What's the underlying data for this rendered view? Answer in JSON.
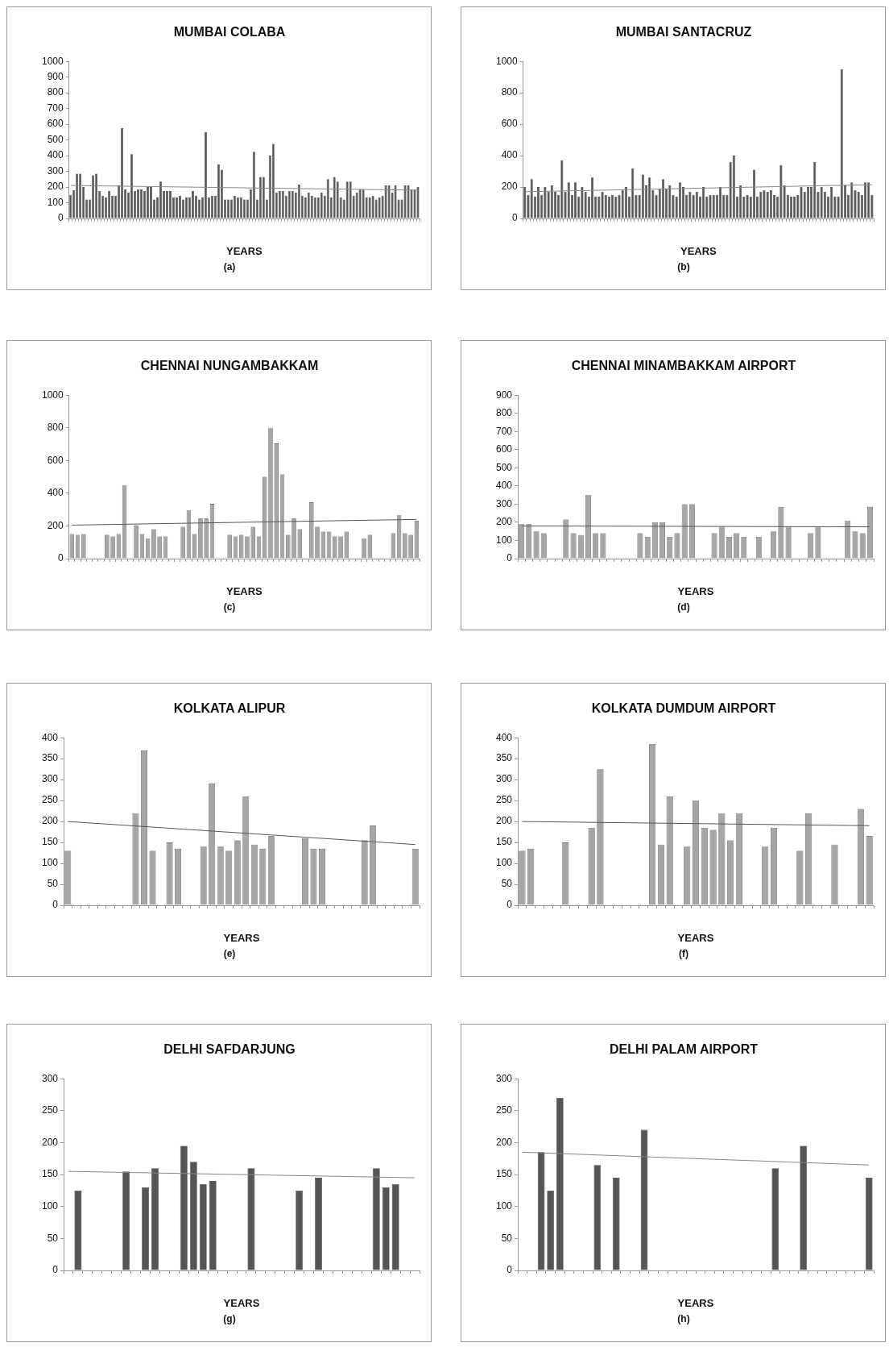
{
  "chart_data": [
    {
      "type": "bar",
      "title": "MUMBAI COLABA",
      "xlabel": "YEARS",
      "annotations": [
        "(a)"
      ],
      "grid": false,
      "legend": false,
      "tick_labels": "y",
      "ylim": [
        0,
        1000
      ],
      "yticks": [
        0,
        100,
        200,
        300,
        400,
        500,
        600,
        700,
        800,
        900,
        1000
      ],
      "categories": [
        null,
        null,
        null,
        null,
        null,
        null,
        null,
        null,
        null,
        null,
        null,
        null,
        null,
        null,
        null,
        null,
        null,
        null,
        null,
        null,
        null,
        null,
        null,
        null,
        null,
        null,
        null,
        null,
        null,
        null,
        null,
        null,
        null,
        null,
        null,
        null,
        null,
        null,
        null,
        null,
        null,
        null,
        null,
        null,
        null,
        null,
        null,
        null,
        null,
        null,
        null,
        null,
        null,
        null,
        null,
        null,
        null,
        null,
        null,
        null,
        null,
        null,
        null,
        null,
        null,
        null,
        null,
        null,
        null,
        null,
        null,
        null,
        null,
        null,
        null,
        null,
        null,
        null,
        null,
        null,
        null,
        null,
        null,
        null,
        null,
        null,
        null,
        null,
        null,
        null,
        null,
        null,
        null,
        null,
        null,
        null,
        null,
        null,
        null,
        null,
        null,
        null,
        null,
        null,
        null,
        null,
        null,
        null,
        null
      ],
      "series": [
        {
          "color": "#555555",
          "values": [
            150,
            180,
            285,
            285,
            200,
            120,
            120,
            275,
            285,
            175,
            145,
            135,
            175,
            145,
            145,
            210,
            575,
            185,
            165,
            410,
            175,
            185,
            185,
            175,
            200,
            200,
            120,
            135,
            235,
            175,
            175,
            175,
            135,
            135,
            145,
            120,
            135,
            135,
            175,
            145,
            120,
            135,
            550,
            135,
            145,
            145,
            345,
            310,
            120,
            120,
            120,
            145,
            135,
            135,
            120,
            120,
            185,
            425,
            120,
            265,
            265,
            120,
            400,
            475,
            165,
            175,
            175,
            145,
            175,
            175,
            165,
            215,
            145,
            135,
            165,
            145,
            135,
            135,
            165,
            145,
            250,
            135,
            265,
            235,
            135,
            120,
            235,
            235,
            145,
            165,
            185,
            185,
            135,
            135,
            145,
            120,
            135,
            145,
            210,
            210,
            165,
            210,
            120,
            120,
            210,
            210,
            185,
            185,
            200
          ]
        },
        {
          "type": "line",
          "color": "#888888",
          "values": [
            210,
            null,
            null,
            null,
            null,
            null,
            null,
            null,
            null,
            null,
            null,
            null,
            null,
            null,
            null,
            null,
            null,
            null,
            null,
            null,
            null,
            null,
            null,
            null,
            null,
            null,
            null,
            null,
            null,
            null,
            null,
            null,
            null,
            null,
            null,
            null,
            null,
            null,
            null,
            null,
            null,
            null,
            null,
            null,
            null,
            null,
            null,
            null,
            null,
            null,
            null,
            null,
            null,
            null,
            null,
            null,
            null,
            null,
            null,
            null,
            null,
            null,
            null,
            null,
            null,
            null,
            null,
            null,
            null,
            null,
            null,
            null,
            null,
            null,
            null,
            null,
            null,
            null,
            null,
            null,
            null,
            null,
            null,
            null,
            null,
            null,
            null,
            null,
            null,
            null,
            null,
            null,
            null,
            null,
            null,
            null,
            null,
            null,
            null,
            null,
            null,
            null,
            null,
            null,
            null,
            null,
            null,
            null,
            180
          ]
        }
      ]
    },
    {
      "type": "bar",
      "title": "MUMBAI SANTACRUZ",
      "xlabel": "YEARS",
      "annotations": [
        "(b)"
      ],
      "grid": false,
      "legend": false,
      "tick_labels": "y",
      "ylim": [
        0,
        1000
      ],
      "yticks": [
        0,
        200,
        400,
        600,
        800,
        1000
      ],
      "categories": [
        null,
        null,
        null,
        null,
        null,
        null,
        null,
        null,
        null,
        null,
        null,
        null,
        null,
        null,
        null,
        null,
        null,
        null,
        null,
        null,
        null,
        null,
        null,
        null,
        null,
        null,
        null,
        null,
        null,
        null,
        null,
        null,
        null,
        null,
        null,
        null,
        null,
        null,
        null,
        null,
        null,
        null,
        null,
        null,
        null,
        null,
        null,
        null,
        null,
        null,
        null,
        null,
        null,
        null,
        null,
        null,
        null,
        null,
        null,
        null,
        null,
        null,
        null,
        null,
        null,
        null,
        null,
        null,
        null,
        null,
        null,
        null,
        null,
        null,
        null,
        null,
        null,
        null,
        null,
        null,
        null,
        null,
        null,
        null,
        null,
        null,
        null,
        null,
        null,
        null,
        null,
        null,
        null,
        null,
        null,
        null,
        null,
        null,
        null,
        null,
        null,
        null,
        null,
        null
      ],
      "series": [
        {
          "color": "#555555",
          "values": [
            200,
            150,
            250,
            140,
            200,
            150,
            200,
            170,
            210,
            170,
            150,
            370,
            170,
            230,
            150,
            230,
            140,
            200,
            170,
            140,
            260,
            140,
            140,
            170,
            150,
            140,
            150,
            140,
            150,
            180,
            200,
            140,
            320,
            150,
            150,
            280,
            210,
            260,
            180,
            150,
            190,
            250,
            190,
            210,
            150,
            140,
            230,
            200,
            150,
            170,
            150,
            170,
            140,
            200,
            140,
            150,
            150,
            150,
            200,
            150,
            150,
            360,
            400,
            140,
            210,
            140,
            150,
            140,
            310,
            140,
            170,
            180,
            170,
            180,
            150,
            140,
            340,
            210,
            150,
            140,
            140,
            150,
            200,
            170,
            200,
            200,
            360,
            170,
            200,
            170,
            140,
            200,
            140,
            140,
            950,
            210,
            150,
            230,
            180,
            170,
            150,
            230,
            230,
            150
          ]
        },
        {
          "type": "line",
          "color": "#888888",
          "values": [
            170,
            null,
            null,
            null,
            null,
            null,
            null,
            null,
            null,
            null,
            null,
            null,
            null,
            null,
            null,
            null,
            null,
            null,
            null,
            null,
            null,
            null,
            null,
            null,
            null,
            null,
            null,
            null,
            null,
            null,
            null,
            null,
            null,
            null,
            null,
            null,
            null,
            null,
            null,
            null,
            null,
            null,
            null,
            null,
            null,
            null,
            null,
            null,
            null,
            null,
            null,
            null,
            null,
            null,
            null,
            null,
            null,
            null,
            null,
            null,
            null,
            null,
            null,
            null,
            null,
            null,
            null,
            null,
            null,
            null,
            null,
            null,
            null,
            null,
            null,
            null,
            null,
            null,
            null,
            null,
            null,
            null,
            null,
            null,
            null,
            null,
            null,
            null,
            null,
            null,
            null,
            null,
            null,
            null,
            null,
            null,
            null,
            null,
            null,
            null,
            null,
            null,
            null,
            215
          ]
        }
      ]
    },
    {
      "type": "bar",
      "title": "CHENNAI NUNGAMBAKKAM",
      "xlabel": "YEARS",
      "annotations": [
        "(c)"
      ],
      "grid": false,
      "legend": false,
      "tick_labels": "y",
      "ylim": [
        0,
        1000
      ],
      "yticks": [
        0,
        200,
        400,
        600,
        800,
        1000
      ],
      "categories": [
        null,
        null,
        null,
        null,
        null,
        null,
        null,
        null,
        null,
        null,
        null,
        null,
        null,
        null,
        null,
        null,
        null,
        null,
        null,
        null,
        null,
        null,
        null,
        null,
        null,
        null,
        null,
        null,
        null,
        null,
        null,
        null,
        null,
        null,
        null,
        null,
        null,
        null,
        null,
        null,
        null,
        null,
        null,
        null,
        null,
        null,
        null,
        null,
        null,
        null,
        null,
        null,
        null,
        null,
        null,
        null,
        null,
        null,
        null,
        null
      ],
      "series": [
        {
          "color": "#a6a6a6",
          "values": [
            150,
            145,
            150,
            null,
            null,
            null,
            145,
            135,
            150,
            450,
            null,
            205,
            150,
            125,
            180,
            135,
            135,
            null,
            null,
            195,
            295,
            150,
            245,
            245,
            335,
            null,
            null,
            145,
            135,
            145,
            135,
            195,
            135,
            500,
            800,
            705,
            515,
            145,
            245,
            180,
            null,
            345,
            195,
            165,
            165,
            135,
            135,
            165,
            null,
            null,
            125,
            145,
            null,
            null,
            null,
            155,
            265,
            155,
            145,
            230
          ]
        },
        {
          "type": "line",
          "color": "#555555",
          "values": [
            205,
            null,
            null,
            null,
            null,
            null,
            null,
            null,
            null,
            null,
            null,
            null,
            null,
            null,
            null,
            null,
            null,
            null,
            null,
            null,
            null,
            null,
            null,
            null,
            null,
            null,
            null,
            null,
            null,
            null,
            null,
            null,
            null,
            null,
            null,
            null,
            null,
            null,
            null,
            null,
            null,
            null,
            null,
            null,
            null,
            null,
            null,
            null,
            null,
            null,
            null,
            null,
            null,
            null,
            null,
            null,
            null,
            null,
            null,
            240
          ]
        }
      ]
    },
    {
      "type": "bar",
      "title": "CHENNAI MINAMBAKKAM AIRPORT",
      "xlabel": "YEARS",
      "annotations": [
        "(d)"
      ],
      "grid": false,
      "legend": false,
      "tick_labels": "y",
      "ylim": [
        0,
        900
      ],
      "yticks": [
        0,
        100,
        200,
        300,
        400,
        500,
        600,
        700,
        800,
        900
      ],
      "categories": [
        null,
        null,
        null,
        null,
        null,
        null,
        null,
        null,
        null,
        null,
        null,
        null,
        null,
        null,
        null,
        null,
        null,
        null,
        null,
        null,
        null,
        null,
        null,
        null,
        null,
        null,
        null,
        null,
        null,
        null,
        null,
        null,
        null,
        null,
        null,
        null,
        null,
        null,
        null,
        null,
        null,
        null,
        null,
        null,
        null,
        null,
        null,
        null
      ],
      "series": [
        {
          "color": "#a6a6a6",
          "values": [
            190,
            190,
            150,
            140,
            null,
            null,
            215,
            140,
            130,
            350,
            140,
            140,
            null,
            null,
            null,
            null,
            140,
            120,
            200,
            200,
            120,
            140,
            300,
            300,
            null,
            null,
            140,
            175,
            120,
            140,
            120,
            null,
            120,
            null,
            150,
            285,
            175,
            null,
            null,
            140,
            175,
            null,
            null,
            null,
            210,
            150,
            140,
            285
          ]
        },
        {
          "type": "line",
          "color": "#555555",
          "values": [
            180,
            null,
            null,
            null,
            null,
            null,
            null,
            null,
            null,
            null,
            null,
            null,
            null,
            null,
            null,
            null,
            null,
            null,
            null,
            null,
            null,
            null,
            null,
            null,
            null,
            null,
            null,
            null,
            null,
            null,
            null,
            null,
            null,
            null,
            null,
            null,
            null,
            null,
            null,
            null,
            null,
            null,
            null,
            null,
            null,
            null,
            null,
            175
          ]
        }
      ]
    },
    {
      "type": "bar",
      "title": "KOLKATA ALIPUR",
      "xlabel": "YEARS",
      "annotations": [
        "(e)"
      ],
      "grid": false,
      "legend": false,
      "tick_labels": "y",
      "ylim": [
        0,
        400
      ],
      "yticks": [
        0,
        50,
        100,
        150,
        200,
        250,
        300,
        350,
        400
      ],
      "categories": [
        null,
        null,
        null,
        null,
        null,
        null,
        null,
        null,
        null,
        null,
        null,
        null,
        null,
        null,
        null,
        null,
        null,
        null,
        null,
        null,
        null,
        null,
        null,
        null,
        null,
        null,
        null,
        null,
        null,
        null,
        null,
        null,
        null,
        null,
        null,
        null,
        null,
        null,
        null,
        null,
        null,
        null
      ],
      "series": [
        {
          "color": "#a6a6a6",
          "values": [
            130,
            null,
            null,
            null,
            null,
            null,
            null,
            null,
            220,
            370,
            130,
            null,
            150,
            135,
            null,
            null,
            140,
            290,
            140,
            130,
            155,
            260,
            145,
            135,
            165,
            null,
            null,
            null,
            160,
            135,
            135,
            null,
            null,
            null,
            null,
            155,
            190,
            null,
            null,
            null,
            null,
            135
          ]
        },
        {
          "type": "line",
          "color": "#555555",
          "values": [
            200,
            null,
            null,
            null,
            null,
            null,
            null,
            null,
            null,
            null,
            null,
            null,
            null,
            null,
            null,
            null,
            null,
            null,
            null,
            null,
            null,
            null,
            null,
            null,
            null,
            null,
            null,
            null,
            null,
            null,
            null,
            null,
            null,
            null,
            null,
            null,
            null,
            null,
            null,
            null,
            null,
            145
          ]
        }
      ]
    },
    {
      "type": "bar",
      "title": "KOLKATA DUMDUM AIRPORT",
      "xlabel": "YEARS",
      "annotations": [
        "(f)"
      ],
      "grid": false,
      "legend": false,
      "tick_labels": "y",
      "ylim": [
        0,
        400
      ],
      "yticks": [
        0,
        50,
        100,
        150,
        200,
        250,
        300,
        350,
        400
      ],
      "categories": [
        null,
        null,
        null,
        null,
        null,
        null,
        null,
        null,
        null,
        null,
        null,
        null,
        null,
        null,
        null,
        null,
        null,
        null,
        null,
        null,
        null,
        null,
        null,
        null,
        null,
        null,
        null,
        null,
        null,
        null,
        null,
        null,
        null,
        null,
        null,
        null,
        null,
        null,
        null,
        null,
        null
      ],
      "series": [
        {
          "color": "#a6a6a6",
          "values": [
            130,
            135,
            null,
            null,
            null,
            150,
            null,
            null,
            185,
            325,
            null,
            null,
            null,
            null,
            null,
            385,
            145,
            260,
            null,
            140,
            250,
            185,
            180,
            220,
            155,
            220,
            null,
            null,
            140,
            185,
            null,
            null,
            130,
            220,
            null,
            null,
            145,
            null,
            null,
            230,
            165
          ]
        },
        {
          "type": "line",
          "color": "#555555",
          "values": [
            200,
            null,
            null,
            null,
            null,
            null,
            null,
            null,
            null,
            null,
            null,
            null,
            null,
            null,
            null,
            null,
            null,
            null,
            null,
            null,
            null,
            null,
            null,
            null,
            null,
            null,
            null,
            null,
            null,
            null,
            null,
            null,
            null,
            null,
            null,
            null,
            null,
            null,
            null,
            null,
            190
          ]
        }
      ]
    },
    {
      "type": "bar",
      "title": "DELHI SAFDARJUNG",
      "xlabel": "YEARS",
      "annotations": [
        "(g)"
      ],
      "grid": false,
      "legend": false,
      "tick_labels": "y",
      "ylim": [
        0,
        300
      ],
      "yticks": [
        0,
        50,
        100,
        150,
        200,
        250,
        300
      ],
      "categories": [
        null,
        null,
        null,
        null,
        null,
        null,
        null,
        null,
        null,
        null,
        null,
        null,
        null,
        null,
        null,
        null,
        null,
        null,
        null,
        null,
        null,
        null,
        null,
        null,
        null,
        null,
        null,
        null,
        null,
        null,
        null,
        null,
        null,
        null,
        null,
        null,
        null
      ],
      "series": [
        {
          "color": "#555555",
          "values": [
            null,
            125,
            null,
            null,
            null,
            null,
            155,
            null,
            130,
            160,
            null,
            null,
            195,
            170,
            135,
            140,
            null,
            null,
            null,
            160,
            null,
            null,
            null,
            null,
            125,
            null,
            145,
            null,
            null,
            null,
            null,
            null,
            160,
            130,
            135,
            null,
            null
          ]
        },
        {
          "type": "line",
          "color": "#888888",
          "values": [
            155,
            null,
            null,
            null,
            null,
            null,
            null,
            null,
            null,
            null,
            null,
            null,
            null,
            null,
            null,
            null,
            null,
            null,
            null,
            null,
            null,
            null,
            null,
            null,
            null,
            null,
            null,
            null,
            null,
            null,
            null,
            null,
            null,
            null,
            null,
            null,
            145
          ]
        }
      ]
    },
    {
      "type": "bar",
      "title": "DELHI PALAM AIRPORT",
      "xlabel": "YEARS",
      "annotations": [
        "(h)"
      ],
      "grid": false,
      "legend": false,
      "tick_labels": "y",
      "ylim": [
        0,
        300
      ],
      "yticks": [
        0,
        50,
        100,
        150,
        200,
        250,
        300
      ],
      "categories": [
        null,
        null,
        null,
        null,
        null,
        null,
        null,
        null,
        null,
        null,
        null,
        null,
        null,
        null,
        null,
        null,
        null,
        null,
        null,
        null,
        null,
        null,
        null,
        null,
        null,
        null,
        null,
        null,
        null,
        null,
        null,
        null,
        null,
        null,
        null,
        null,
        null,
        null
      ],
      "series": [
        {
          "color": "#555555",
          "values": [
            null,
            null,
            185,
            125,
            270,
            null,
            null,
            null,
            165,
            null,
            145,
            null,
            null,
            220,
            null,
            null,
            null,
            null,
            null,
            null,
            null,
            null,
            null,
            null,
            null,
            null,
            null,
            160,
            null,
            null,
            195,
            null,
            null,
            null,
            null,
            null,
            null,
            145
          ]
        },
        {
          "type": "line",
          "color": "#888888",
          "values": [
            185,
            null,
            null,
            null,
            null,
            null,
            null,
            null,
            null,
            null,
            null,
            null,
            null,
            null,
            null,
            null,
            null,
            null,
            null,
            null,
            null,
            null,
            null,
            null,
            null,
            null,
            null,
            null,
            null,
            null,
            null,
            null,
            null,
            null,
            null,
            null,
            null,
            165
          ]
        }
      ]
    }
  ]
}
